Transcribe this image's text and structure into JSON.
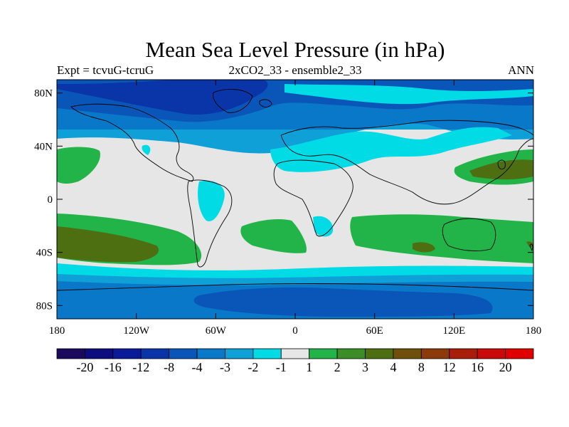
{
  "title": "Mean Sea Level Pressure (in hPa)",
  "subtitle_left": "Expt = tcvuG-tcruG",
  "subtitle_center": "2xCO2_33 - ensemble2_33",
  "subtitle_right": "ANN",
  "map": {
    "lat_ticks": [
      "80N",
      "40N",
      "0",
      "40S",
      "80S"
    ],
    "lat_values": [
      80,
      40,
      0,
      -40,
      -80
    ],
    "lon_ticks": [
      "180",
      "120W",
      "60W",
      "0",
      "60E",
      "120E",
      "180"
    ],
    "lon_values": [
      -180,
      -120,
      -60,
      0,
      60,
      120,
      180
    ],
    "lat_range": [
      -90,
      90
    ],
    "lon_range": [
      -180,
      180
    ]
  },
  "colorbar": {
    "labels": [
      "-20",
      "-16",
      "-12",
      "-8",
      "-4",
      "-3",
      "-2",
      "-1",
      "1",
      "2",
      "3",
      "4",
      "8",
      "12",
      "16",
      "20"
    ],
    "colors": [
      "#1a0a5e",
      "#0d0d80",
      "#0a1a99",
      "#0a35a8",
      "#0a56b8",
      "#0a78c8",
      "#0fa0d8",
      "#00dbe6",
      "#e6e6e6",
      "#22b448",
      "#3c8c28",
      "#4e6e12",
      "#6e500a",
      "#8c3a0a",
      "#a81e0a",
      "#c80a0a",
      "#e00000"
    ]
  }
}
